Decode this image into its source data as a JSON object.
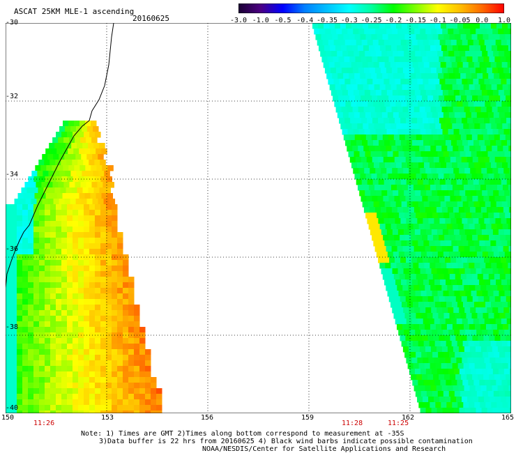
{
  "header": {
    "product": "ASCAT 25KM MLE-1 ascending",
    "date": "20160625"
  },
  "colorbar": {
    "tick_labels": [
      "-3.0",
      "-1.0",
      "-0.5",
      "-0.4",
      "-0.35",
      "-0.3",
      "-0.25",
      "-0.2",
      "-0.15",
      "-0.1",
      "-0.05",
      "0.0",
      "1.0"
    ],
    "colors": [
      "#1a0033",
      "#4b0082",
      "#0000ff",
      "#0080ff",
      "#00c0ff",
      "#00ffff",
      "#00ff9f",
      "#00ff00",
      "#7fff00",
      "#ffff00",
      "#ffbf00",
      "#ff6a00",
      "#ff0000"
    ]
  },
  "map": {
    "lat_labels": [
      "-30",
      "-32",
      "-34",
      "-36",
      "-38",
      "-40"
    ],
    "lon_labels": [
      "150",
      "153",
      "156",
      "159",
      "162",
      "165"
    ],
    "lat_range": [
      -40,
      -30
    ],
    "lon_range": [
      150,
      165
    ],
    "gridlines": true,
    "coastline_color": "#000000"
  },
  "pass_times": [
    {
      "label": "11:26",
      "lon": 151
    },
    {
      "label": "11:28",
      "lon": 159.9
    },
    {
      "label": "11:25",
      "lon": 161.4
    }
  ],
  "notes": {
    "line1": "Note: 1) Times are GMT 2)Times along bottom correspond to measurement at -35S",
    "line2": "3)Data buffer is 22 hrs from 20160625 4) Black wind barbs indicate possible contamination",
    "line3": "NOAA/NESDIS/Center for Satellite Applications and Research"
  }
}
